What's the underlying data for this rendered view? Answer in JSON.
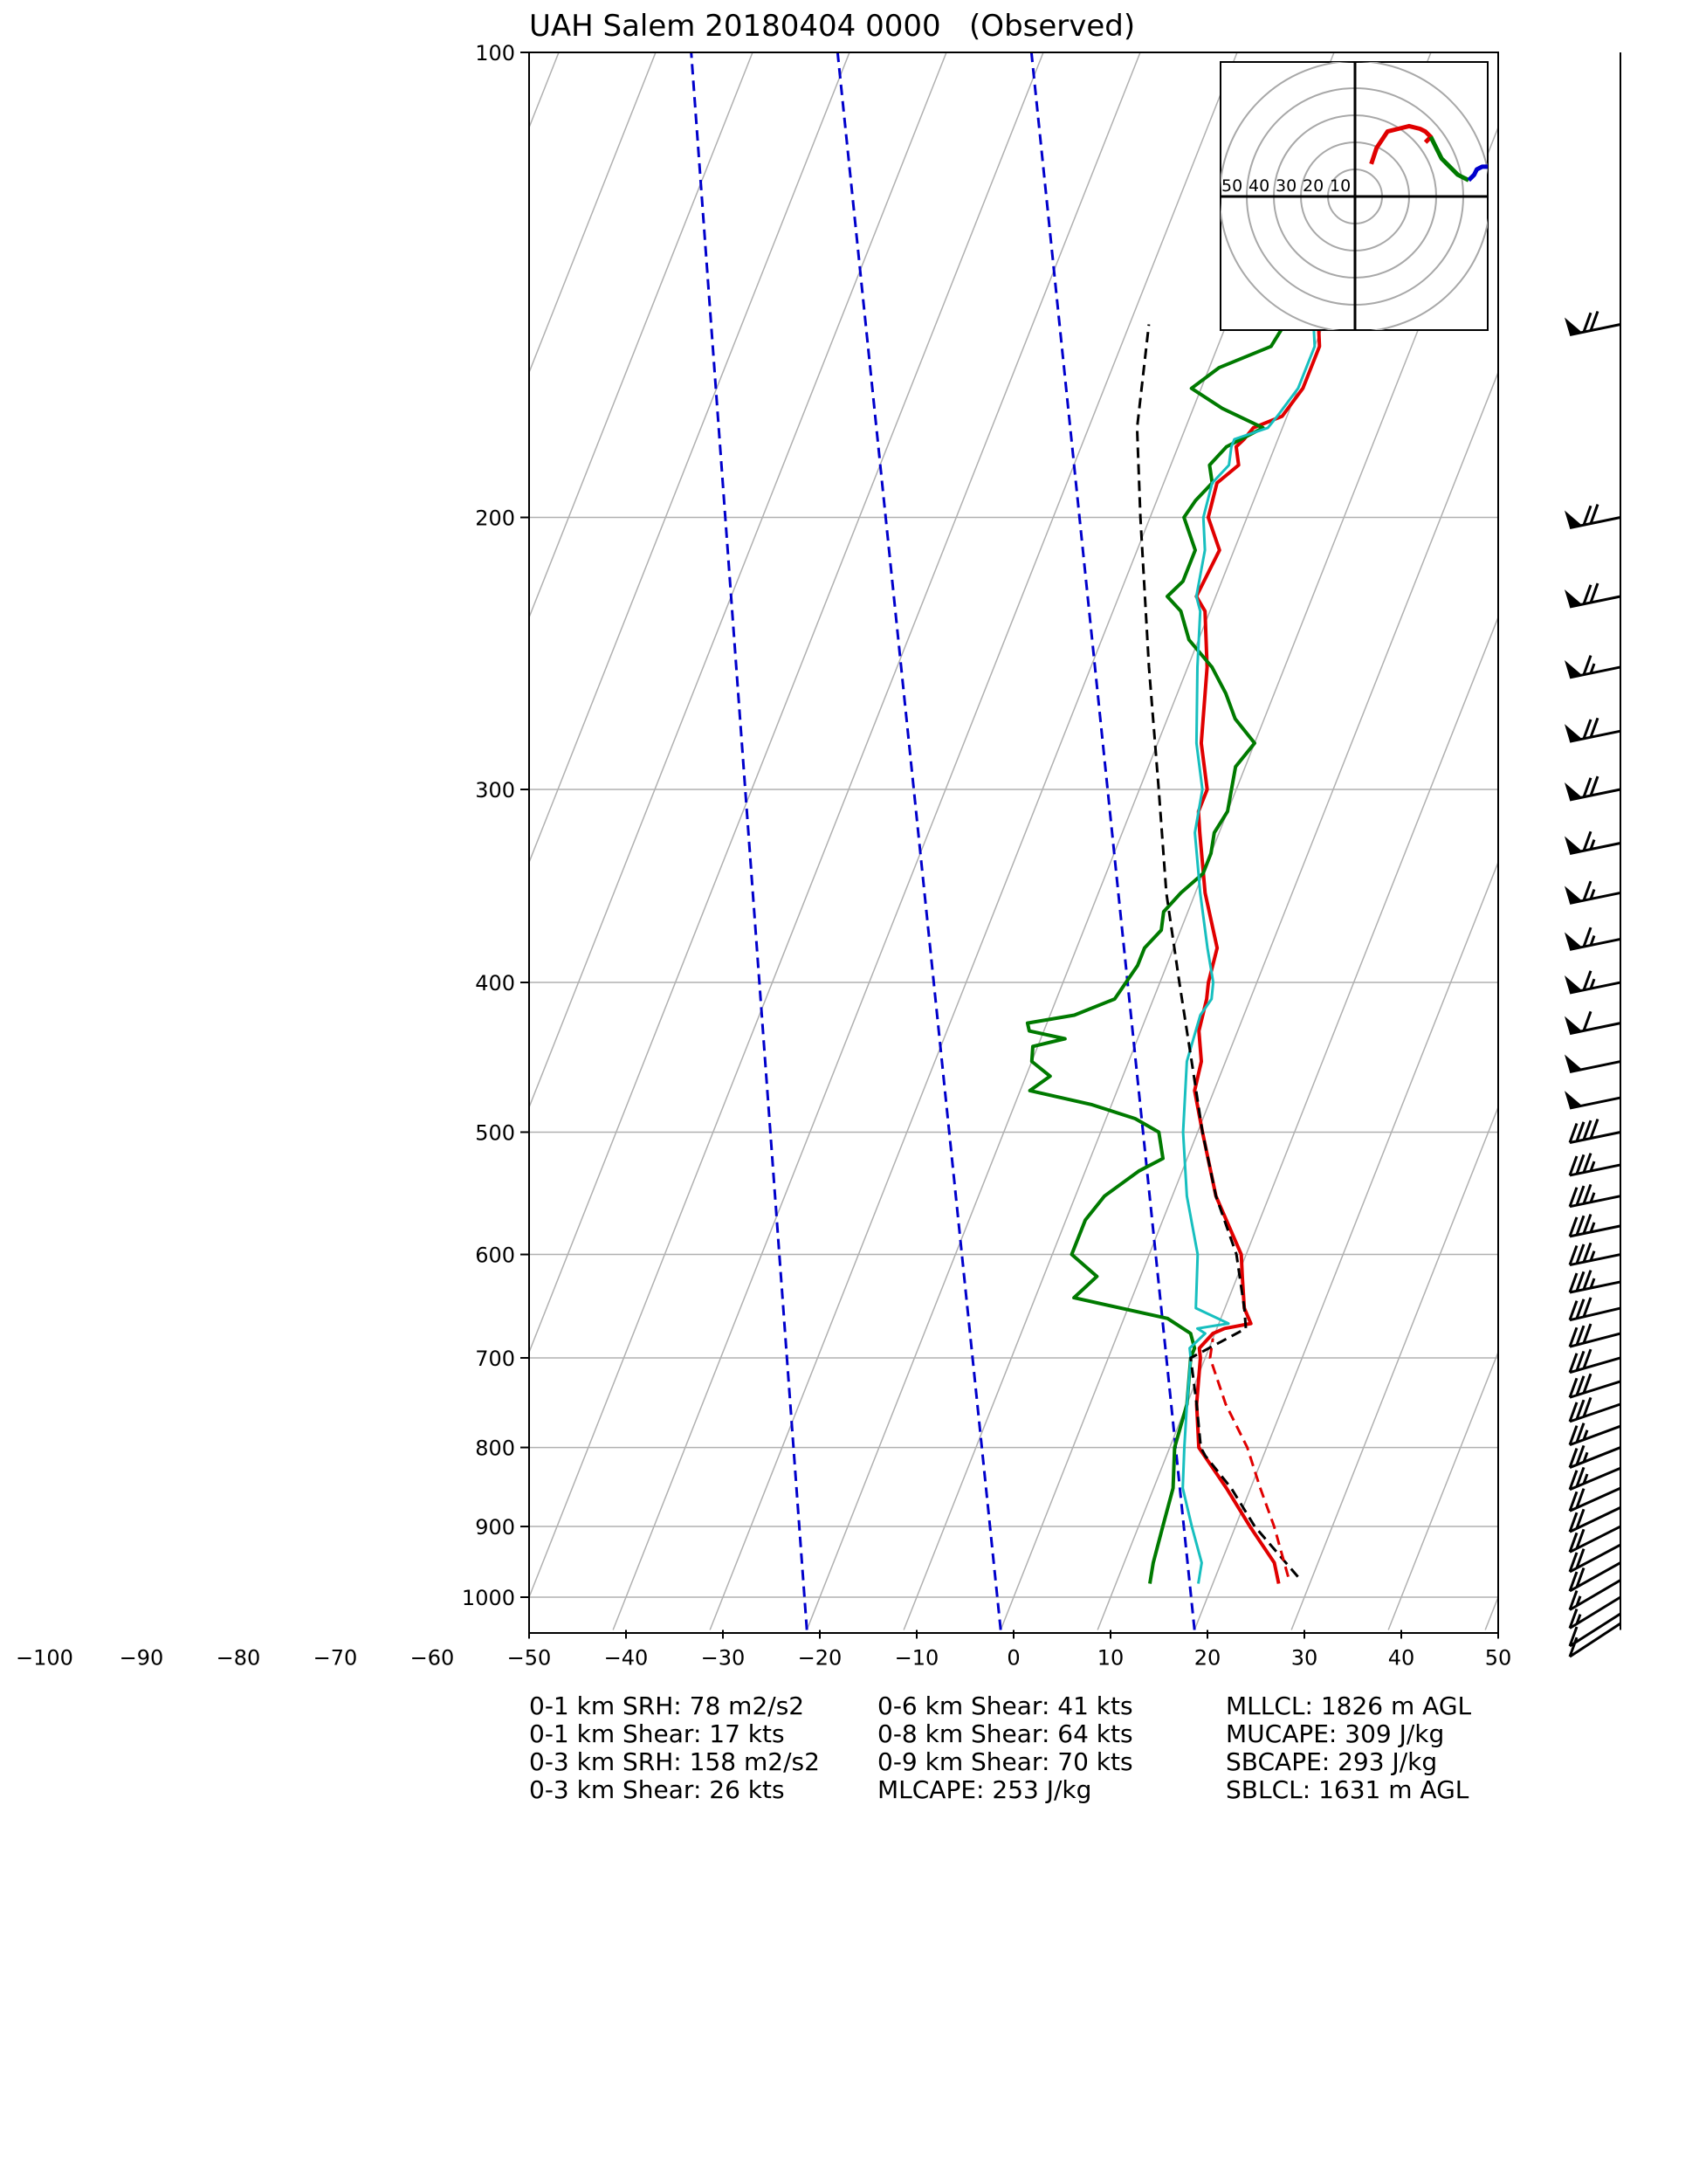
{
  "title": "UAH Salem 20180404 0000   (Observed)",
  "chart_data": {
    "type": "skew-t",
    "title": "UAH Salem 20180404 0000   (Observed)",
    "x_ticks": [
      -100,
      -90,
      -80,
      -70,
      -60,
      -50,
      -40,
      -30,
      -20,
      -10,
      0,
      10,
      20,
      30,
      40,
      50
    ],
    "y_ticks": [
      100,
      200,
      300,
      400,
      500,
      600,
      700,
      800,
      900,
      1000
    ],
    "xlim": [
      -50,
      50
    ],
    "ylim": [
      1050,
      100
    ],
    "y_scale": "log",
    "grid": true,
    "colors": {
      "temperature": "#e00000",
      "dewpoint": "#007a00",
      "wetbulb": "#17bfbf",
      "parcel": "#000000",
      "adiabat": "#0000cc",
      "grid": "#b0b0b0"
    },
    "series": [
      {
        "key": "temperature",
        "p": [
          980,
          950,
          900,
          850,
          800,
          750,
          700,
          690,
          675,
          670,
          665,
          650,
          620,
          600,
          550,
          500,
          470,
          450,
          430,
          410,
          400,
          380,
          350,
          320,
          310,
          300,
          280,
          250,
          230,
          225,
          210,
          200,
          190,
          185,
          180,
          178,
          175,
          172,
          165,
          155,
          150
        ],
        "t": [
          26.8,
          25.5,
          21.5,
          17.5,
          13.0,
          11.0,
          9.5,
          9.0,
          9.8,
          10.8,
          13.3,
          12.0,
          10.5,
          9.5,
          4.5,
          0.5,
          -2.0,
          -2.5,
          -4.0,
          -4.5,
          -5.0,
          -5.5,
          -9.0,
          -12.0,
          -13.0,
          -13.0,
          -15.5,
          -18.0,
          -20.5,
          -22.0,
          -21.5,
          -24.0,
          -24.5,
          -23.0,
          -24.0,
          -23.5,
          -23.0,
          -20.5,
          -19.5,
          -19.5,
          -20.5
        ]
      },
      {
        "key": "dewpoint",
        "p": [
          980,
          950,
          900,
          850,
          800,
          750,
          700,
          690,
          675,
          660,
          640,
          620,
          600,
          590,
          570,
          550,
          530,
          520,
          500,
          490,
          480,
          470,
          460,
          450,
          440,
          435,
          430,
          425,
          420,
          410,
          400,
          390,
          380,
          370,
          360,
          350,
          340,
          330,
          320,
          310,
          300,
          290,
          280,
          270,
          260,
          250,
          240,
          230,
          225,
          220,
          210,
          200,
          195,
          190,
          185,
          180,
          175,
          170,
          165,
          160,
          155,
          150
        ],
        "d": [
          13.5,
          13.0,
          12.5,
          12.0,
          10.5,
          10.0,
          8.5,
          8.5,
          7.5,
          4.5,
          -6.0,
          -4.5,
          -8.0,
          -8.0,
          -8.0,
          -7.0,
          -4.5,
          -2.5,
          -4.0,
          -7.0,
          -12.0,
          -19.0,
          -17.5,
          -20.0,
          -20.5,
          -17.5,
          -21.5,
          -22.0,
          -17.5,
          -14.0,
          -13.5,
          -13.0,
          -13.0,
          -12.0,
          -12.5,
          -11.5,
          -10.0,
          -10.0,
          -10.5,
          -10.0,
          -10.5,
          -11.0,
          -10.0,
          -13.0,
          -15.0,
          -17.5,
          -21.0,
          -23.0,
          -25.0,
          -24.0,
          -24.0,
          -26.5,
          -26.0,
          -25.0,
          -26.0,
          -25.0,
          -22.0,
          -27.0,
          -31.0,
          -29.0,
          -24.5,
          -24.0
        ]
      },
      {
        "key": "wetbulb",
        "p": [
          980,
          950,
          900,
          850,
          800,
          750,
          700,
          690,
          675,
          670,
          665,
          650,
          600,
          550,
          500,
          450,
          420,
          410,
          400,
          380,
          350,
          320,
          300,
          280,
          250,
          230,
          225,
          210,
          200,
          190,
          185,
          180,
          178,
          175,
          172,
          165,
          155,
          150
        ],
        "w": [
          18.5,
          18.0,
          15.5,
          13.0,
          11.5,
          10.0,
          8.5,
          8.0,
          9.0,
          8.0,
          11.0,
          7.0,
          5.0,
          1.5,
          -1.5,
          -4.0,
          -4.5,
          -4.0,
          -4.5,
          -6.5,
          -9.5,
          -12.5,
          -13.5,
          -16.0,
          -19.0,
          -21.0,
          -22.0,
          -23.0,
          -24.5,
          -25.0,
          -24.0,
          -24.5,
          -24.5,
          -21.5,
          -21.0,
          -20.0,
          -20.0,
          -21.0
        ]
      },
      {
        "key": "parcel",
        "p": [
          970,
          900,
          850,
          810,
          800,
          750,
          700,
          670,
          650,
          600,
          550,
          500,
          450,
          400,
          350,
          300,
          250,
          200,
          175,
          150
        ],
        "t": [
          28.5,
          22.0,
          18.0,
          14.0,
          13.2,
          11.0,
          8.5,
          13.0,
          12.0,
          9.0,
          4.5,
          0.5,
          -3.5,
          -8.0,
          -13.0,
          -18.0,
          -24.0,
          -31.0,
          -35.0,
          -38.0
        ]
      },
      {
        "key": "surface-parcel-dashed",
        "p": [
          970,
          900,
          850,
          800,
          750,
          700,
          680
        ],
        "t": [
          27.5,
          24.0,
          21.0,
          18.0,
          14.0,
          10.5,
          10.0
        ]
      }
    ],
    "adiabat_lines": [
      {
        "t_at_1000": -20,
        "t_at_100": -95
      },
      {
        "t_at_1000": 0,
        "t_at_100": -80
      },
      {
        "t_at_1000": 20,
        "t_at_100": -60
      }
    ],
    "hodograph": {
      "ring_labels": [
        "50",
        "40",
        "30",
        "20",
        "10"
      ],
      "rings_kts": [
        10,
        20,
        30,
        40,
        50
      ],
      "segments": [
        {
          "color": "#e00000",
          "points": [
            [
              6,
              12
            ],
            [
              8,
              18
            ],
            [
              12,
              24
            ],
            [
              16,
              25
            ],
            [
              20,
              26
            ],
            [
              24,
              25
            ],
            [
              26,
              24
            ],
            [
              28,
              22
            ],
            [
              26,
              20
            ]
          ]
        },
        {
          "color": "#007a00",
          "points": [
            [
              28,
              22
            ],
            [
              30,
              18
            ],
            [
              32,
              14
            ],
            [
              34,
              12
            ],
            [
              36,
              10
            ],
            [
              38,
              8
            ],
            [
              40,
              7
            ],
            [
              42,
              6
            ]
          ]
        },
        {
          "color": "#0000cc",
          "points": [
            [
              42,
              6
            ],
            [
              44,
              8
            ],
            [
              45,
              10
            ],
            [
              47,
              11
            ],
            [
              50,
              11
            ]
          ]
        }
      ]
    },
    "wind_barbs": [
      {
        "p": 150,
        "speed_kts": 70
      },
      {
        "p": 200,
        "speed_kts": 70
      },
      {
        "p": 225,
        "speed_kts": 70
      },
      {
        "p": 250,
        "speed_kts": 65
      },
      {
        "p": 275,
        "speed_kts": 70
      },
      {
        "p": 300,
        "speed_kts": 70
      },
      {
        "p": 325,
        "speed_kts": 65
      },
      {
        "p": 350,
        "speed_kts": 65
      },
      {
        "p": 375,
        "speed_kts": 65
      },
      {
        "p": 400,
        "speed_kts": 65
      },
      {
        "p": 425,
        "speed_kts": 60
      },
      {
        "p": 450,
        "speed_kts": 50
      },
      {
        "p": 475,
        "speed_kts": 50
      },
      {
        "p": 500,
        "speed_kts": 40
      },
      {
        "p": 525,
        "speed_kts": 35
      },
      {
        "p": 550,
        "speed_kts": 35
      },
      {
        "p": 575,
        "speed_kts": 35
      },
      {
        "p": 600,
        "speed_kts": 35
      },
      {
        "p": 625,
        "speed_kts": 35
      },
      {
        "p": 650,
        "speed_kts": 30
      },
      {
        "p": 675,
        "speed_kts": 30
      },
      {
        "p": 700,
        "speed_kts": 30
      },
      {
        "p": 725,
        "speed_kts": 30
      },
      {
        "p": 750,
        "speed_kts": 30
      },
      {
        "p": 775,
        "speed_kts": 25
      },
      {
        "p": 800,
        "speed_kts": 25
      },
      {
        "p": 825,
        "speed_kts": 25
      },
      {
        "p": 850,
        "speed_kts": 20
      },
      {
        "p": 875,
        "speed_kts": 20
      },
      {
        "p": 900,
        "speed_kts": 20
      },
      {
        "p": 925,
        "speed_kts": 20
      },
      {
        "p": 950,
        "speed_kts": 20
      },
      {
        "p": 975,
        "speed_kts": 15
      },
      {
        "p": 1000,
        "speed_kts": 15
      },
      {
        "p": 1025,
        "speed_kts": 10
      },
      {
        "p": 1040,
        "speed_kts": 10
      }
    ]
  },
  "stats": {
    "col1": [
      "0-1 km SRH: 78 m2/s2",
      "0-1 km Shear: 17 kts",
      "0-3 km SRH: 158 m2/s2",
      "0-3 km Shear: 26 kts"
    ],
    "col2": [
      "0-6 km Shear: 41 kts",
      "0-8 km Shear: 64 kts",
      "0-9 km Shear: 70 kts",
      "MLCAPE: 253 J/kg"
    ],
    "col3": [
      "MLLCL: 1826 m AGL",
      "MUCAPE: 309 J/kg",
      "SBCAPE: 293 J/kg",
      "SBLCL: 1631 m AGL"
    ]
  }
}
